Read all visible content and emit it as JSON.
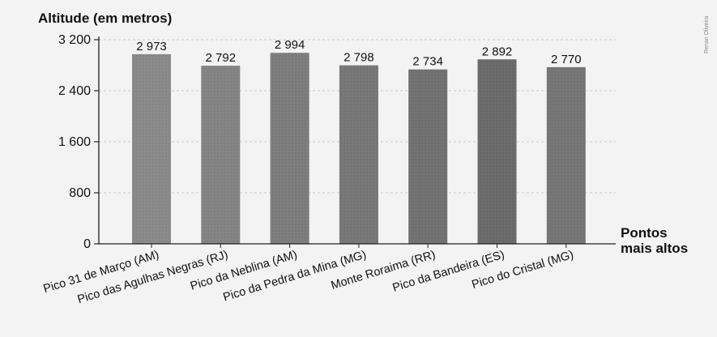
{
  "credit": "Renan Oliveira",
  "chart_data": {
    "type": "bar",
    "ylabel": "Altitude (em metros)",
    "xlabel_line1": "Pontos",
    "xlabel_line2": "mais altos",
    "ylim": [
      0,
      3200
    ],
    "yticks": [
      0,
      800,
      1600,
      2400,
      3200
    ],
    "ytick_labels": [
      "0",
      "800",
      "1 600",
      "2 400",
      "3 200"
    ],
    "categories": [
      "Pico 31 de Março (AM)",
      "Pico das Agulhas Negras (RJ)",
      "Pico da Neblina (AM)",
      "Pico da Pedra da Mina (MG)",
      "Monte Roraima (RR)",
      "Pico da Bandeira (ES)",
      "Pico do Cristal (MG)"
    ],
    "values": [
      2973,
      2792,
      2994,
      2798,
      2734,
      2892,
      2770
    ],
    "value_labels": [
      "2 973",
      "2 792",
      "2 994",
      "2 798",
      "2 734",
      "2 892",
      "2 770"
    ],
    "grid": true,
    "bar_color": "#808080"
  }
}
